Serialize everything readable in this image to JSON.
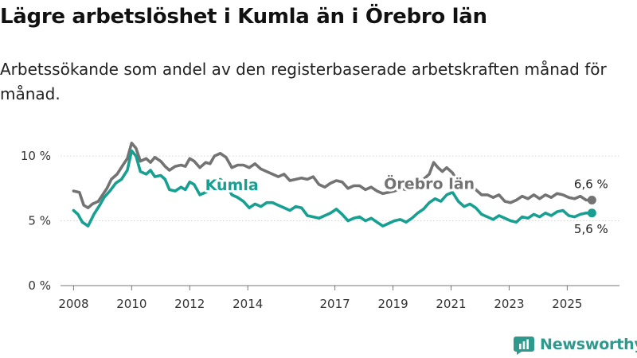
{
  "title": "Lägre arbetslöshet i Kumla än i Örebro län",
  "subtitle": "Arbetssökande som andel av den registerbaserade arbetskraften månad för månad.",
  "brand": "Newsworthy",
  "chart_data": {
    "type": "line",
    "ylim": [
      0,
      11.6
    ],
    "xlim": [
      2007.55,
      2026.8
    ],
    "y_ticks": [
      0,
      5,
      10
    ],
    "y_tick_labels": [
      "0 %",
      "5 %",
      "10 %"
    ],
    "x_ticks": [
      2008,
      2010,
      2012,
      2014,
      2017,
      2019,
      2021,
      2023,
      2025
    ],
    "x_tick_labels": [
      "2008",
      "2010",
      "2012",
      "2014",
      "2017",
      "2019",
      "2021",
      "2023",
      "2025"
    ],
    "grid": true,
    "series": [
      {
        "name": "Örebro län",
        "label": "Örebro län",
        "color": "#737373",
        "end_label": "6,6 %",
        "points": [
          [
            2008.0,
            7.3
          ],
          [
            2008.2,
            7.2
          ],
          [
            2008.35,
            6.2
          ],
          [
            2008.5,
            6.0
          ],
          [
            2008.65,
            6.3
          ],
          [
            2008.85,
            6.5
          ],
          [
            2009.0,
            7.0
          ],
          [
            2009.15,
            7.5
          ],
          [
            2009.3,
            8.2
          ],
          [
            2009.5,
            8.6
          ],
          [
            2009.7,
            9.3
          ],
          [
            2009.85,
            9.8
          ],
          [
            2010.0,
            11.0
          ],
          [
            2010.15,
            10.6
          ],
          [
            2010.3,
            9.6
          ],
          [
            2010.5,
            9.8
          ],
          [
            2010.65,
            9.5
          ],
          [
            2010.8,
            9.9
          ],
          [
            2011.0,
            9.6
          ],
          [
            2011.15,
            9.2
          ],
          [
            2011.3,
            8.9
          ],
          [
            2011.5,
            9.2
          ],
          [
            2011.7,
            9.3
          ],
          [
            2011.85,
            9.2
          ],
          [
            2012.0,
            9.8
          ],
          [
            2012.15,
            9.6
          ],
          [
            2012.35,
            9.1
          ],
          [
            2012.55,
            9.5
          ],
          [
            2012.7,
            9.4
          ],
          [
            2012.85,
            10.0
          ],
          [
            2013.05,
            10.2
          ],
          [
            2013.25,
            9.9
          ],
          [
            2013.45,
            9.1
          ],
          [
            2013.65,
            9.3
          ],
          [
            2013.85,
            9.3
          ],
          [
            2014.05,
            9.1
          ],
          [
            2014.25,
            9.4
          ],
          [
            2014.45,
            9.0
          ],
          [
            2014.65,
            8.8
          ],
          [
            2014.85,
            8.6
          ],
          [
            2015.05,
            8.4
          ],
          [
            2015.25,
            8.6
          ],
          [
            2015.45,
            8.1
          ],
          [
            2015.65,
            8.2
          ],
          [
            2015.85,
            8.3
          ],
          [
            2016.05,
            8.2
          ],
          [
            2016.25,
            8.4
          ],
          [
            2016.45,
            7.8
          ],
          [
            2016.65,
            7.6
          ],
          [
            2016.85,
            7.9
          ],
          [
            2017.05,
            8.1
          ],
          [
            2017.25,
            8.0
          ],
          [
            2017.45,
            7.5
          ],
          [
            2017.65,
            7.7
          ],
          [
            2017.85,
            7.7
          ],
          [
            2018.05,
            7.4
          ],
          [
            2018.25,
            7.6
          ],
          [
            2018.45,
            7.3
          ],
          [
            2018.65,
            7.1
          ],
          [
            2018.85,
            7.2
          ],
          [
            2019.05,
            7.3
          ],
          [
            2019.25,
            7.5
          ],
          [
            2019.45,
            7.4
          ],
          [
            2019.65,
            7.5
          ],
          [
            2019.85,
            7.8
          ],
          [
            2020.05,
            8.2
          ],
          [
            2020.25,
            8.6
          ],
          [
            2020.4,
            9.5
          ],
          [
            2020.55,
            9.1
          ],
          [
            2020.7,
            8.8
          ],
          [
            2020.85,
            9.1
          ],
          [
            2021.05,
            8.7
          ],
          [
            2021.25,
            7.9
          ],
          [
            2021.45,
            7.5
          ],
          [
            2021.65,
            7.8
          ],
          [
            2021.85,
            7.4
          ],
          [
            2022.05,
            7.0
          ],
          [
            2022.25,
            7.0
          ],
          [
            2022.45,
            6.8
          ],
          [
            2022.65,
            7.0
          ],
          [
            2022.85,
            6.5
          ],
          [
            2023.05,
            6.4
          ],
          [
            2023.25,
            6.6
          ],
          [
            2023.45,
            6.9
          ],
          [
            2023.65,
            6.7
          ],
          [
            2023.85,
            7.0
          ],
          [
            2024.05,
            6.7
          ],
          [
            2024.25,
            7.0
          ],
          [
            2024.45,
            6.8
          ],
          [
            2024.65,
            7.1
          ],
          [
            2024.85,
            7.0
          ],
          [
            2025.05,
            6.8
          ],
          [
            2025.25,
            6.7
          ],
          [
            2025.45,
            6.9
          ],
          [
            2025.65,
            6.6
          ],
          [
            2025.85,
            6.6
          ]
        ]
      },
      {
        "name": "Kumla",
        "label": "Kumla",
        "color": "#17a091",
        "end_label": "5,6 %",
        "points": [
          [
            2008.0,
            5.8
          ],
          [
            2008.15,
            5.5
          ],
          [
            2008.3,
            4.9
          ],
          [
            2008.5,
            4.6
          ],
          [
            2008.7,
            5.5
          ],
          [
            2008.9,
            6.2
          ],
          [
            2009.05,
            6.8
          ],
          [
            2009.25,
            7.3
          ],
          [
            2009.45,
            7.9
          ],
          [
            2009.65,
            8.2
          ],
          [
            2009.85,
            8.9
          ],
          [
            2010.0,
            10.4
          ],
          [
            2010.15,
            10.0
          ],
          [
            2010.3,
            8.8
          ],
          [
            2010.5,
            8.6
          ],
          [
            2010.65,
            8.9
          ],
          [
            2010.8,
            8.4
          ],
          [
            2011.0,
            8.5
          ],
          [
            2011.15,
            8.2
          ],
          [
            2011.3,
            7.4
          ],
          [
            2011.5,
            7.3
          ],
          [
            2011.7,
            7.6
          ],
          [
            2011.85,
            7.4
          ],
          [
            2012.0,
            8.0
          ],
          [
            2012.15,
            7.8
          ],
          [
            2012.35,
            7.0
          ],
          [
            2012.55,
            7.2
          ],
          [
            2012.7,
            7.4
          ],
          [
            2012.85,
            8.0
          ],
          [
            2013.05,
            8.2
          ],
          [
            2013.25,
            7.8
          ],
          [
            2013.45,
            7.0
          ],
          [
            2013.65,
            6.8
          ],
          [
            2013.85,
            6.5
          ],
          [
            2014.05,
            6.0
          ],
          [
            2014.25,
            6.3
          ],
          [
            2014.45,
            6.1
          ],
          [
            2014.65,
            6.4
          ],
          [
            2014.85,
            6.4
          ],
          [
            2015.05,
            6.2
          ],
          [
            2015.25,
            6.0
          ],
          [
            2015.45,
            5.8
          ],
          [
            2015.65,
            6.1
          ],
          [
            2015.85,
            6.0
          ],
          [
            2016.05,
            5.4
          ],
          [
            2016.25,
            5.3
          ],
          [
            2016.45,
            5.2
          ],
          [
            2016.65,
            5.4
          ],
          [
            2016.85,
            5.6
          ],
          [
            2017.05,
            5.9
          ],
          [
            2017.25,
            5.5
          ],
          [
            2017.45,
            5.0
          ],
          [
            2017.65,
            5.2
          ],
          [
            2017.85,
            5.3
          ],
          [
            2018.05,
            5.0
          ],
          [
            2018.25,
            5.2
          ],
          [
            2018.45,
            4.9
          ],
          [
            2018.65,
            4.6
          ],
          [
            2018.85,
            4.8
          ],
          [
            2019.05,
            5.0
          ],
          [
            2019.25,
            5.1
          ],
          [
            2019.45,
            4.9
          ],
          [
            2019.65,
            5.2
          ],
          [
            2019.85,
            5.6
          ],
          [
            2020.05,
            5.9
          ],
          [
            2020.25,
            6.4
          ],
          [
            2020.45,
            6.7
          ],
          [
            2020.65,
            6.5
          ],
          [
            2020.85,
            7.0
          ],
          [
            2021.05,
            7.2
          ],
          [
            2021.25,
            6.5
          ],
          [
            2021.45,
            6.1
          ],
          [
            2021.65,
            6.3
          ],
          [
            2021.85,
            6.0
          ],
          [
            2022.05,
            5.5
          ],
          [
            2022.25,
            5.3
          ],
          [
            2022.45,
            5.1
          ],
          [
            2022.65,
            5.4
          ],
          [
            2022.85,
            5.2
          ],
          [
            2023.05,
            5.0
          ],
          [
            2023.25,
            4.9
          ],
          [
            2023.45,
            5.3
          ],
          [
            2023.65,
            5.2
          ],
          [
            2023.85,
            5.5
          ],
          [
            2024.05,
            5.3
          ],
          [
            2024.25,
            5.6
          ],
          [
            2024.45,
            5.4
          ],
          [
            2024.65,
            5.7
          ],
          [
            2024.85,
            5.8
          ],
          [
            2025.05,
            5.4
          ],
          [
            2025.25,
            5.3
          ],
          [
            2025.45,
            5.5
          ],
          [
            2025.65,
            5.6
          ],
          [
            2025.85,
            5.6
          ]
        ]
      }
    ]
  }
}
